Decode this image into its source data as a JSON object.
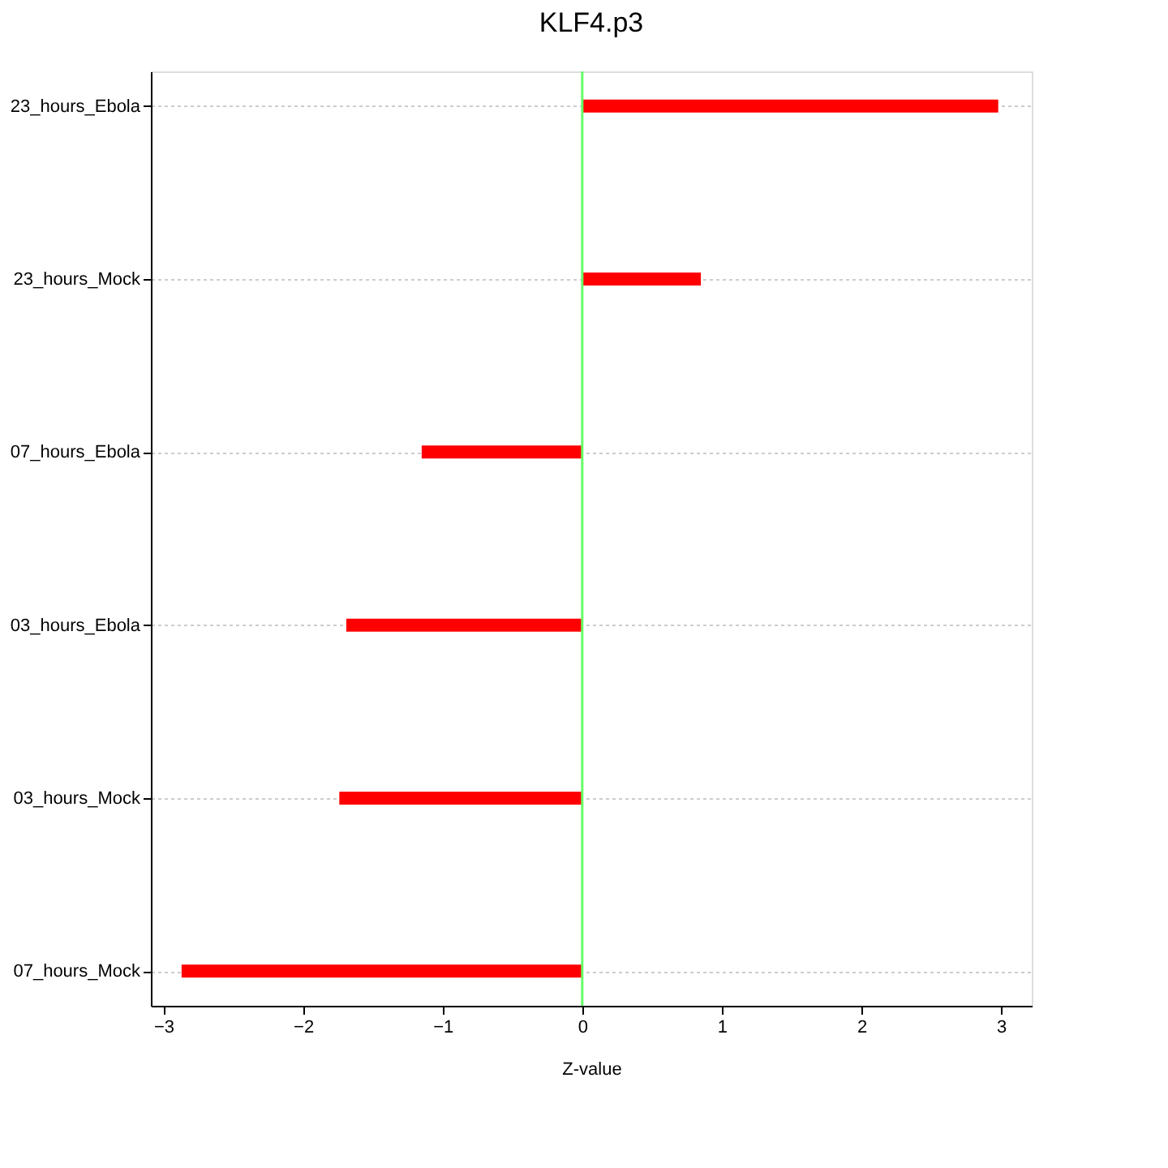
{
  "chart_data": {
    "type": "bar",
    "orientation": "horizontal",
    "title": "KLF4.p3",
    "xlabel": "Z-value",
    "categories": [
      "23_hours_Ebola",
      "23_hours_Mock",
      "07_hours_Ebola",
      "03_hours_Ebola",
      "03_hours_Mock",
      "07_hours_Mock"
    ],
    "values": [
      2.98,
      0.85,
      -1.15,
      -1.69,
      -1.74,
      -2.87
    ],
    "color": "#ff0000",
    "xlim": [
      -3.09,
      3.22
    ],
    "xticks": [
      -3,
      -2,
      -1,
      0,
      1,
      2,
      3
    ],
    "grid": "y",
    "ref_lines": [
      {
        "axis": "x",
        "value": 0,
        "color": "#66ff66"
      }
    ]
  }
}
